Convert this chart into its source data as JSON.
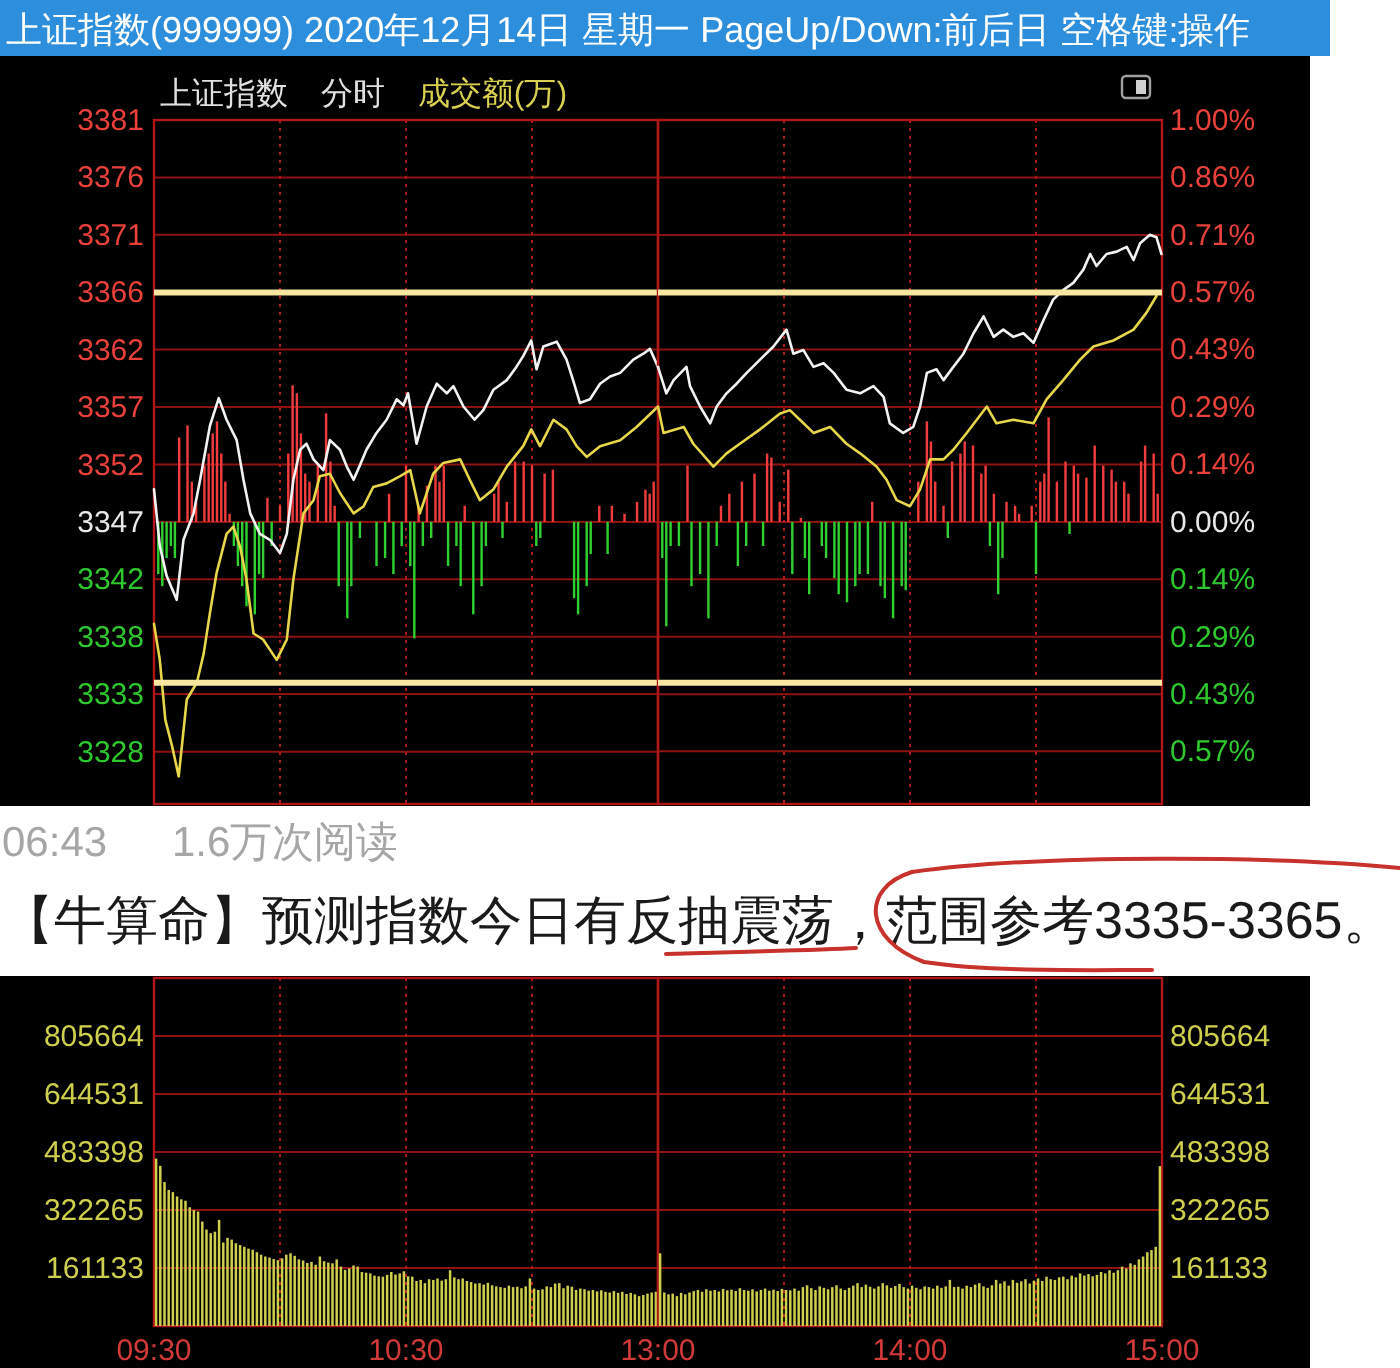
{
  "chart_data": [
    {
      "type": "line",
      "title": "上证指数(999999) 2020年12月14日 星期一 PageUp/Down:前后日 空格键:操作",
      "subtitle": "上证指数 分时 成交额(万)",
      "series": [
        {
          "color": "#f2f2f2",
          "x": [
            9.5,
            9.523,
            9.55,
            9.59,
            9.617,
            9.657,
            9.683,
            9.722,
            9.757,
            9.788,
            9.828,
            9.855,
            9.882,
            9.92,
            9.96,
            10.0,
            10.027,
            10.053,
            10.08,
            10.105,
            10.133,
            10.172,
            10.198,
            10.238,
            10.265,
            10.292,
            10.317,
            10.343,
            10.383,
            10.423,
            10.463,
            10.49,
            10.508,
            10.542,
            10.582,
            10.622,
            10.662,
            10.688,
            10.728,
            10.772,
            10.807,
            10.847,
            10.9,
            10.938,
            10.965,
            10.997,
            11.018,
            11.045,
            11.098,
            11.137,
            11.163,
            11.19,
            11.23,
            11.27,
            11.31,
            11.35,
            11.402,
            11.442,
            11.468,
            11.5
          ],
          "values": [
            3349.9,
            3345.2,
            3342.7,
            3340.7,
            3345.7,
            3347.9,
            3350.7,
            3355.2,
            3357.5,
            3355.7,
            3354.0,
            3350.7,
            3347.9,
            3346.2,
            3345.7,
            3344.6,
            3346.2,
            3350.7,
            3353.2,
            3353.7,
            3352.4,
            3351.5,
            3354.0,
            3353.2,
            3351.8,
            3350.7,
            3351.9,
            3353.2,
            3354.6,
            3355.7,
            3357.4,
            3356.9,
            3357.9,
            3353.7,
            3356.8,
            3358.7,
            3357.9,
            3358.5,
            3356.8,
            3355.7,
            3356.5,
            3358.2,
            3359.0,
            3360.1,
            3361.0,
            3362.3,
            3359.9,
            3361.8,
            3362.2,
            3360.7,
            3359.0,
            3357.1,
            3357.4,
            3358.7,
            3359.3,
            3359.6,
            3360.7,
            3361.2,
            3361.6,
            3360.1
          ]
        },
        {
          "color": "#e6d64a",
          "x": [
            9.5,
            9.523,
            9.545,
            9.572,
            9.598,
            9.63,
            9.67,
            9.697,
            9.722,
            9.748,
            9.788,
            9.815,
            9.842,
            9.867,
            9.895,
            9.933,
            9.987,
            10.027,
            10.053,
            10.093,
            10.133,
            10.158,
            10.198,
            10.238,
            10.292,
            10.332,
            10.37,
            10.423,
            10.477,
            10.517,
            10.555,
            10.608,
            10.648,
            10.715,
            10.753,
            10.793,
            10.847,
            10.9,
            10.965,
            10.997,
            11.032,
            11.085,
            11.137,
            11.177,
            11.217,
            11.27,
            11.35,
            11.415,
            11.5
          ],
          "values": [
            3338.7,
            3335.7,
            3330.7,
            3328.5,
            3326.0,
            3332.4,
            3333.8,
            3336.2,
            3339.6,
            3342.9,
            3346.2,
            3346.8,
            3345.1,
            3342.4,
            3337.9,
            3337.4,
            3335.7,
            3337.4,
            3342.4,
            3347.9,
            3349.0,
            3351.0,
            3351.2,
            3349.6,
            3347.9,
            3348.5,
            3350.1,
            3350.4,
            3351.0,
            3351.5,
            3347.9,
            3351.2,
            3352.1,
            3352.4,
            3350.7,
            3349.0,
            3349.9,
            3351.8,
            3353.5,
            3354.9,
            3353.5,
            3355.7,
            3354.9,
            3353.5,
            3352.6,
            3353.5,
            3354.0,
            3355.1,
            3356.8
          ]
        },
        {
          "type": "bar",
          "axis": "y2",
          "color": "#f03c3c",
          "x": [
            9.6,
            9.633,
            9.65,
            9.667,
            9.7,
            9.717,
            9.733,
            9.75,
            9.767,
            9.783,
            9.8,
            9.95,
            10.0,
            10.033,
            10.05,
            10.067,
            10.083,
            10.1,
            10.117,
            10.15,
            10.183,
            10.2,
            10.217,
            10.433,
            10.5,
            10.55,
            10.583,
            10.617,
            10.633,
            10.65,
            10.733,
            10.85,
            10.867,
            10.9,
            10.933,
            10.967,
            11.0,
            11.05,
            11.083,
            11.267,
            11.317,
            11.367,
            11.417,
            11.45,
            11.467,
            11.483
          ],
          "values": [
            0.21,
            0.24,
            0.1,
            0.05,
            0.14,
            0.17,
            0.22,
            0.25,
            0.17,
            0.1,
            0.02,
            0.06,
            0.04,
            0.17,
            0.34,
            0.32,
            0.22,
            0.12,
            0.1,
            0.14,
            0.27,
            0.15,
            0.04,
            0.07,
            0.14,
            0.04,
            0.09,
            0.14,
            0.1,
            0.14,
            0.04,
            0.07,
            0.1,
            0.05,
            0.15,
            0.15,
            0.14,
            0.12,
            0.13,
            0.04,
            0.04,
            0.02,
            0.05,
            0.08,
            0.07,
            0.1
          ]
        },
        {
          "type": "bar",
          "axis": "y2",
          "color": "#2fd02f",
          "x": [
            9.517,
            9.533,
            9.55,
            9.567,
            9.583,
            9.817,
            9.833,
            9.85,
            9.867,
            9.9,
            9.917,
            9.933,
            9.967,
            10.233,
            10.267,
            10.283,
            10.317,
            10.383,
            10.417,
            10.45,
            10.483,
            10.517,
            10.533,
            10.567,
            10.6,
            10.667,
            10.7,
            10.717,
            10.767,
            10.8,
            10.817,
            10.883,
            11.017,
            11.033,
            11.167,
            11.183,
            11.217,
            11.233,
            11.3
          ],
          "values": [
            -0.13,
            -0.16,
            -0.09,
            -0.06,
            -0.09,
            -0.06,
            -0.11,
            -0.16,
            -0.21,
            -0.23,
            -0.13,
            -0.14,
            -0.06,
            -0.16,
            -0.24,
            -0.16,
            -0.04,
            -0.11,
            -0.09,
            -0.13,
            -0.06,
            -0.11,
            -0.29,
            -0.06,
            -0.04,
            -0.11,
            -0.06,
            -0.16,
            -0.23,
            -0.16,
            -0.06,
            -0.04,
            -0.06,
            -0.04,
            -0.19,
            -0.23,
            -0.16,
            -0.08,
            -0.08
          ]
        }
      ],
      "xlim": [
        9.5,
        11.5
      ],
      "xticks": [
        10,
        10.5,
        11
      ],
      "ylim": [
        3323.7,
        3380.66
      ],
      "yticks": [
        {
          "value": 3380.66,
          "label": "3381"
        },
        {
          "value": 3375.88,
          "label": "3376"
        },
        {
          "value": 3371.1,
          "label": "3371"
        },
        {
          "value": 3366.32,
          "label": "3366"
        },
        {
          "value": 3361.54,
          "label": "3362"
        },
        {
          "value": 3356.75,
          "label": "3357"
        },
        {
          "value": 3351.97,
          "label": "3352"
        },
        {
          "value": 3347.19,
          "label": "3347"
        },
        {
          "value": 3342.41,
          "label": "3342"
        },
        {
          "value": 3337.63,
          "label": "3338"
        },
        {
          "value": 3332.85,
          "label": "3333"
        },
        {
          "value": 3328.06,
          "label": "3328"
        }
      ],
      "y2lim": [
        -0.702,
        1.0
      ],
      "tick_labels": "y",
      "grid": true,
      "ref_lines": [
        {
          "axis": "y",
          "value": 3366.3,
          "color": "#f7e7a0"
        },
        {
          "axis": "y",
          "value": 3333.8,
          "color": "#f7e7a0"
        }
      ],
      "annotations": [
        "06:43",
        "1.6万次阅读",
        "【牛算命】预测指数今日有反抽震荡，范围参考3335-3365。"
      ]
    },
    {
      "type": "line",
      "series": [
        {
          "color": "#f2f2f2",
          "x": [
            13.0,
            13.033,
            13.062,
            13.113,
            13.127,
            13.167,
            13.207,
            13.233,
            13.272,
            13.312,
            13.352,
            13.405,
            13.458,
            13.51,
            13.537,
            13.577,
            13.617,
            13.657,
            13.697,
            13.748,
            13.802,
            13.855,
            13.895,
            13.92,
            13.973,
            14.013,
            14.04,
            14.067,
            14.105,
            14.133,
            14.172,
            14.212,
            14.252,
            14.292,
            14.332,
            14.37,
            14.41,
            14.45,
            14.49,
            14.53,
            14.568,
            14.608,
            14.648,
            14.688,
            14.715,
            14.74,
            14.78,
            14.82,
            14.86,
            14.887,
            14.913,
            14.952,
            14.978,
            14.998
          ],
          "values": [
            3360.1,
            3357.9,
            3359.0,
            3360.1,
            3358.5,
            3356.8,
            3355.4,
            3356.8,
            3357.9,
            3358.7,
            3359.6,
            3360.7,
            3361.8,
            3363.2,
            3361.2,
            3361.5,
            3360.1,
            3360.4,
            3359.6,
            3358.2,
            3357.9,
            3358.5,
            3357.6,
            3355.4,
            3354.6,
            3355.1,
            3356.8,
            3359.6,
            3359.9,
            3359.0,
            3360.1,
            3361.2,
            3362.9,
            3364.3,
            3362.6,
            3363.2,
            3362.6,
            3362.9,
            3362.1,
            3364.0,
            3365.7,
            3366.5,
            3367.1,
            3368.2,
            3369.5,
            3368.5,
            3369.5,
            3369.7,
            3370.1,
            3369.0,
            3370.4,
            3371.1,
            3370.9,
            3369.5
          ]
        },
        {
          "color": "#e6d64a",
          "x": [
            13.0,
            13.022,
            13.102,
            13.14,
            13.22,
            13.272,
            13.325,
            13.405,
            13.483,
            13.523,
            13.563,
            13.617,
            13.683,
            13.748,
            13.802,
            13.867,
            13.907,
            13.947,
            14.0,
            14.04,
            14.08,
            14.133,
            14.172,
            14.225,
            14.305,
            14.343,
            14.41,
            14.49,
            14.542,
            14.608,
            14.675,
            14.728,
            14.807,
            14.887,
            14.938,
            14.978
          ],
          "values": [
            3356.8,
            3354.6,
            3355.1,
            3353.7,
            3351.8,
            3352.9,
            3353.7,
            3354.9,
            3356.2,
            3356.5,
            3355.7,
            3354.6,
            3355.1,
            3353.7,
            3352.9,
            3351.8,
            3350.7,
            3349.0,
            3348.5,
            3349.9,
            3352.4,
            3352.4,
            3353.2,
            3354.6,
            3356.8,
            3355.4,
            3355.7,
            3355.4,
            3357.4,
            3359.0,
            3360.7,
            3361.8,
            3362.3,
            3363.2,
            3364.6,
            3366.0
          ]
        },
        {
          "type": "bar",
          "axis": "y2",
          "color": "#f03c3c",
          "x": [
            13.117,
            13.25,
            13.283,
            13.333,
            13.383,
            13.433,
            13.45,
            13.483,
            13.517,
            13.567,
            13.85,
            14.033,
            14.067,
            14.083,
            14.1,
            14.133,
            14.167,
            14.2,
            14.217,
            14.25,
            14.283,
            14.3,
            14.333,
            14.383,
            14.417,
            14.433,
            14.483,
            14.517,
            14.533,
            14.55,
            14.583,
            14.617,
            14.65,
            14.667,
            14.7,
            14.733,
            14.767,
            14.8,
            14.817,
            14.85,
            14.867,
            14.917,
            14.933,
            14.967,
            14.983
          ],
          "values": [
            0.14,
            0.04,
            0.07,
            0.1,
            0.12,
            0.17,
            0.16,
            0.05,
            0.13,
            0.01,
            0.05,
            0.1,
            0.25,
            0.2,
            0.1,
            0.04,
            0.15,
            0.17,
            0.2,
            0.19,
            0.12,
            0.14,
            0.07,
            0.05,
            0.04,
            0.02,
            0.04,
            0.1,
            0.12,
            0.26,
            0.1,
            0.15,
            0.14,
            0.12,
            0.11,
            0.19,
            0.14,
            0.13,
            0.1,
            0.1,
            0.07,
            0.15,
            0.19,
            0.17,
            0.07
          ]
        },
        {
          "type": "bar",
          "axis": "y2",
          "color": "#2fd02f",
          "x": [
            13.017,
            13.033,
            13.05,
            13.083,
            13.133,
            13.167,
            13.2,
            13.233,
            13.317,
            13.35,
            13.417,
            13.533,
            13.583,
            13.6,
            13.65,
            13.667,
            13.7,
            13.717,
            13.75,
            13.783,
            13.8,
            13.833,
            13.883,
            13.9,
            13.933,
            13.967,
            13.983,
            14.15,
            14.317,
            14.35,
            14.367,
            14.5,
            14.633
          ],
          "values": [
            -0.09,
            -0.26,
            -0.06,
            -0.06,
            -0.16,
            -0.13,
            -0.24,
            -0.06,
            -0.11,
            -0.06,
            -0.06,
            -0.13,
            -0.09,
            -0.18,
            -0.06,
            -0.09,
            -0.14,
            -0.18,
            -0.2,
            -0.16,
            -0.13,
            -0.13,
            -0.16,
            -0.19,
            -0.24,
            -0.16,
            -0.17,
            -0.04,
            -0.06,
            -0.18,
            -0.09,
            -0.13,
            -0.03
          ]
        }
      ],
      "xlim": [
        13,
        15
      ],
      "xticks": [
        13.5,
        14,
        14.5
      ],
      "ylim": [
        3323.7,
        3380.66
      ],
      "y2lim": [
        -0.702,
        1.0
      ],
      "y2ticks": [
        {
          "value": 1.0,
          "label": "1.00%"
        },
        {
          "value": 0.857,
          "label": "0.86%"
        },
        {
          "value": 0.714,
          "label": "0.71%"
        },
        {
          "value": 0.571,
          "label": "0.57%"
        },
        {
          "value": 0.429,
          "label": "0.43%"
        },
        {
          "value": 0.286,
          "label": "0.29%"
        },
        {
          "value": 0.143,
          "label": "0.14%"
        },
        {
          "value": 0,
          "label": "0.00%"
        },
        {
          "value": -0.143,
          "label": "0.14%"
        },
        {
          "value": -0.286,
          "label": "0.29%"
        },
        {
          "value": -0.429,
          "label": "0.43%"
        },
        {
          "value": -0.571,
          "label": "0.57%"
        }
      ],
      "tick_labels": "y",
      "grid": true,
      "ref_lines": [
        {
          "axis": "y",
          "value": 3366.3,
          "color": "#f7e7a0"
        },
        {
          "axis": "y",
          "value": 3333.8,
          "color": "#f7e7a0"
        }
      ]
    },
    {
      "type": "bar",
      "color": "#cfcf4e",
      "x": [
        9.5083,
        9.525,
        9.5417,
        9.5583,
        9.575,
        9.5917,
        9.6083,
        9.625,
        9.6417,
        9.6583,
        9.675,
        9.6917,
        9.7083,
        9.725,
        9.7417,
        9.7583,
        9.775,
        9.7917,
        9.8083,
        9.825,
        9.8417,
        9.8583,
        9.875,
        9.8917,
        9.9083,
        9.925,
        9.9417,
        9.9583,
        9.975,
        9.9917,
        10.0083,
        10.025,
        10.0417,
        10.0583,
        10.075,
        10.0917,
        10.1083,
        10.125,
        10.1417,
        10.1583,
        10.175,
        10.1917,
        10.2083,
        10.225,
        10.2417,
        10.2583,
        10.275,
        10.2917,
        10.3083,
        10.325,
        10.3417,
        10.3583,
        10.375,
        10.3917,
        10.4083,
        10.425,
        10.4417,
        10.4583,
        10.475,
        10.4917,
        10.5083,
        10.525,
        10.5417,
        10.5583,
        10.575,
        10.5917,
        10.6083,
        10.625,
        10.6417,
        10.6583,
        10.675,
        10.6917,
        10.7083,
        10.725,
        10.7417,
        10.7583,
        10.775,
        10.7917,
        10.8083,
        10.825,
        10.8417,
        10.8583,
        10.875,
        10.8917,
        10.9083,
        10.925,
        10.9417,
        10.9583,
        10.975,
        10.9917,
        11.0083,
        11.025,
        11.0417,
        11.0583,
        11.075,
        11.0917,
        11.1083,
        11.125,
        11.1417,
        11.1583,
        11.175,
        11.1917,
        11.2083,
        11.225,
        11.2417,
        11.2583,
        11.275,
        11.2917,
        11.3083,
        11.325,
        11.3417,
        11.3583,
        11.375,
        11.3917,
        11.4083,
        11.425,
        11.4417,
        11.4583,
        11.475,
        11.4917
      ],
      "values": [
        465000,
        445000,
        400000,
        378000,
        372000,
        360000,
        352000,
        348000,
        330000,
        322000,
        318000,
        290000,
        268000,
        258000,
        262000,
        295000,
        232000,
        245000,
        240000,
        230000,
        225000,
        220000,
        215000,
        212000,
        205000,
        198000,
        193000,
        190000,
        186000,
        183000,
        188000,
        198000,
        202000,
        195000,
        185000,
        182000,
        175000,
        178000,
        170000,
        193000,
        180000,
        176000,
        174000,
        185000,
        165000,
        156000,
        160000,
        168000,
        165000,
        150000,
        148000,
        146000,
        140000,
        138000,
        137000,
        142000,
        150000,
        143000,
        146000,
        152000,
        138000,
        137000,
        125000,
        128000,
        119000,
        130000,
        128000,
        132000,
        126000,
        130000,
        155000,
        135000,
        130000,
        132000,
        125000,
        122000,
        118000,
        119000,
        115000,
        120000,
        113000,
        110000,
        108000,
        106000,
        112000,
        108000,
        109000,
        105000,
        110000,
        132000,
        104000,
        100000,
        102000,
        110000,
        108000,
        118000,
        119000,
        105000,
        112000,
        109000,
        100000,
        104000,
        102000,
        98000,
        100000,
        96000,
        99000,
        95000,
        93000,
        97000,
        92000,
        95000,
        89000,
        92000,
        88000,
        83000,
        86000,
        90000,
        93000,
        95000
      ],
      "xlim": [
        9.5,
        11.5
      ],
      "xticks": [
        {
          "value": 9.5,
          "label": "09:30"
        },
        {
          "value": 10,
          "label": null
        },
        {
          "value": 10.5,
          "label": "10:30"
        },
        {
          "value": 11,
          "label": null
        }
      ],
      "ylim": [
        0,
        966796
      ],
      "yticks": [
        161133,
        322265,
        483398,
        644531,
        805664
      ],
      "grid": true
    },
    {
      "type": "bar",
      "series": [
        {
          "axis": "y2",
          "color": "#cfcf4e",
          "x": [
            13.0083,
            13.025,
            13.0417,
            13.0583,
            13.075,
            13.0917,
            13.1083,
            13.125,
            13.1417,
            13.1583,
            13.175,
            13.1917,
            13.2083,
            13.225,
            13.2417,
            13.2583,
            13.275,
            13.2917,
            13.3083,
            13.325,
            13.3417,
            13.3583,
            13.375,
            13.3917,
            13.4083,
            13.425,
            13.4417,
            13.4583,
            13.475,
            13.4917,
            13.5083,
            13.525,
            13.5417,
            13.5583,
            13.575,
            13.5917,
            13.6083,
            13.625,
            13.6417,
            13.6583,
            13.675,
            13.6917,
            13.7083,
            13.725,
            13.7417,
            13.7583,
            13.775,
            13.7917,
            13.8083,
            13.825,
            13.8417,
            13.8583,
            13.875,
            13.8917,
            13.9083,
            13.925,
            13.9417,
            13.9583,
            13.975,
            13.9917,
            14.0083,
            14.025,
            14.0417,
            14.0583,
            14.075,
            14.0917,
            14.1083,
            14.125,
            14.1417,
            14.1583,
            14.175,
            14.1917,
            14.2083,
            14.225,
            14.2417,
            14.2583,
            14.275,
            14.2917,
            14.3083,
            14.325,
            14.3417,
            14.3583,
            14.375,
            14.3917,
            14.4083,
            14.425,
            14.4417,
            14.4583,
            14.475,
            14.4917,
            14.5083,
            14.525,
            14.5417,
            14.5583,
            14.575,
            14.5917,
            14.6083,
            14.625,
            14.6417,
            14.6583,
            14.675,
            14.6917,
            14.7083,
            14.725,
            14.7417,
            14.7583,
            14.775,
            14.7917,
            14.8083,
            14.825,
            14.8417,
            14.8583,
            14.875,
            14.8917,
            14.9083,
            14.925,
            14.9417,
            14.9583,
            14.975,
            14.9917
          ],
          "values": [
            202000,
            93000,
            88000,
            90000,
            83000,
            92000,
            88000,
            93000,
            97000,
            100000,
            95000,
            102000,
            98000,
            100000,
            96000,
            103000,
            99000,
            101000,
            97000,
            105000,
            100000,
            98000,
            102000,
            96000,
            100000,
            104000,
            98000,
            101000,
            97000,
            103000,
            100000,
            99000,
            104000,
            98000,
            108000,
            113000,
            105000,
            100000,
            110000,
            106000,
            102000,
            108000,
            113000,
            104000,
            100000,
            106000,
            112000,
            119000,
            108000,
            115000,
            109000,
            104000,
            110000,
            119000,
            113000,
            106000,
            111000,
            117000,
            108000,
            104000,
            112000,
            106000,
            102000,
            110000,
            108000,
            104000,
            112000,
            106000,
            110000,
            128000,
            108000,
            109000,
            104000,
            112000,
            108000,
            115000,
            119000,
            110000,
            106000,
            113000,
            128000,
            118000,
            124000,
            112000,
            128000,
            120000,
            124000,
            130000,
            118000,
            126000,
            132000,
            125000,
            137000,
            130000,
            128000,
            135000,
            137000,
            130000,
            140000,
            135000,
            146000,
            140000,
            144000,
            138000,
            142000,
            150000,
            146000,
            155000,
            148000,
            155000,
            165000,
            160000,
            174000,
            170000,
            185000,
            193000,
            205000,
            211000,
            220000,
            444000
          ]
        }
      ],
      "xlim": [
        13,
        15
      ],
      "xticks": [
        {
          "value": 13,
          "label": "13:00"
        },
        {
          "value": 13.5,
          "label": null
        },
        {
          "value": 14,
          "label": "14:00"
        },
        {
          "value": 14.5,
          "label": null
        },
        {
          "value": 15,
          "label": "15:00"
        }
      ],
      "y2lim": [
        0,
        966796
      ],
      "y2ticks": [
        161133,
        322265,
        483398,
        644531,
        805664
      ],
      "grid": true
    }
  ]
}
